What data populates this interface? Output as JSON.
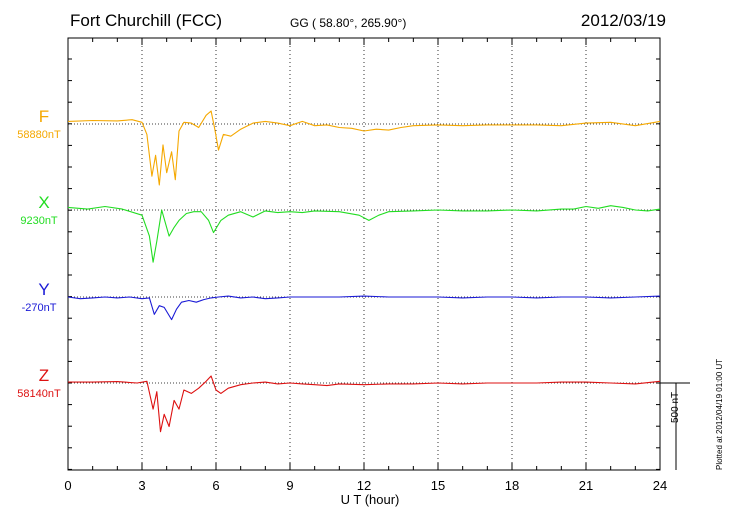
{
  "header": {
    "station": "Fort Churchill (FCC)",
    "coords": "GG ( 58.80°, 265.90°)",
    "date": "2012/03/19"
  },
  "footer": {
    "plotted": "Plotted at 2012/04/19 01:00 UT"
  },
  "chart_data": {
    "type": "line",
    "title": "Fort Churchill (FCC)",
    "xlabel": "U T (hour)",
    "ylabel": "",
    "xlim": [
      0,
      24
    ],
    "xticks": [
      0,
      3,
      6,
      9,
      12,
      15,
      18,
      21,
      24
    ],
    "scale_bar_label": "500 nT",
    "scale_bar_nT": 500,
    "nT_per_panel_unit": 1,
    "series": [
      {
        "name": "F",
        "baseline_label": "58880nT",
        "baseline_nT": 58880,
        "color": "#f5a800",
        "points": [
          [
            0,
            15
          ],
          [
            1,
            20
          ],
          [
            2,
            18
          ],
          [
            2.6,
            25
          ],
          [
            3.0,
            10
          ],
          [
            3.2,
            -60
          ],
          [
            3.4,
            -300
          ],
          [
            3.55,
            -180
          ],
          [
            3.7,
            -350
          ],
          [
            3.85,
            -120
          ],
          [
            4.0,
            -280
          ],
          [
            4.2,
            -160
          ],
          [
            4.35,
            -320
          ],
          [
            4.5,
            -40
          ],
          [
            4.7,
            10
          ],
          [
            5.0,
            5
          ],
          [
            5.3,
            -20
          ],
          [
            5.6,
            50
          ],
          [
            5.8,
            75
          ],
          [
            5.95,
            -30
          ],
          [
            6.1,
            -150
          ],
          [
            6.3,
            -60
          ],
          [
            6.6,
            -70
          ],
          [
            7.0,
            -30
          ],
          [
            7.5,
            5
          ],
          [
            8.0,
            15
          ],
          [
            8.5,
            5
          ],
          [
            9.0,
            -10
          ],
          [
            9.5,
            15
          ],
          [
            10.0,
            -10
          ],
          [
            10.5,
            -5
          ],
          [
            11.0,
            -20
          ],
          [
            11.5,
            -25
          ],
          [
            12.0,
            -40
          ],
          [
            12.5,
            -30
          ],
          [
            13.0,
            -35
          ],
          [
            13.5,
            -20
          ],
          [
            14.0,
            -10
          ],
          [
            15.0,
            -5
          ],
          [
            16.0,
            -10
          ],
          [
            17.0,
            -5
          ],
          [
            18.0,
            -5
          ],
          [
            19.0,
            -5
          ],
          [
            20.0,
            -10
          ],
          [
            21.0,
            5
          ],
          [
            22.0,
            10
          ],
          [
            23.0,
            -10
          ],
          [
            24.0,
            15
          ]
        ]
      },
      {
        "name": "X",
        "baseline_label": "9230nT",
        "baseline_nT": 9230,
        "color": "#22dd22",
        "points": [
          [
            0,
            15
          ],
          [
            0.8,
            5
          ],
          [
            1.5,
            20
          ],
          [
            2.2,
            5
          ],
          [
            3.0,
            -30
          ],
          [
            3.3,
            -150
          ],
          [
            3.45,
            -300
          ],
          [
            3.6,
            -180
          ],
          [
            3.8,
            0
          ],
          [
            4.1,
            -150
          ],
          [
            4.3,
            -100
          ],
          [
            4.5,
            -60
          ],
          [
            4.8,
            -20
          ],
          [
            5.1,
            -10
          ],
          [
            5.4,
            -10
          ],
          [
            5.7,
            -60
          ],
          [
            5.9,
            -130
          ],
          [
            6.2,
            -60
          ],
          [
            6.5,
            -30
          ],
          [
            7.0,
            -10
          ],
          [
            7.5,
            -40
          ],
          [
            8.0,
            -5
          ],
          [
            8.5,
            -15
          ],
          [
            9.0,
            -10
          ],
          [
            9.5,
            -15
          ],
          [
            10.0,
            -5
          ],
          [
            11.0,
            -10
          ],
          [
            11.8,
            -30
          ],
          [
            12.2,
            -60
          ],
          [
            12.6,
            -30
          ],
          [
            13.0,
            -10
          ],
          [
            14.0,
            -5
          ],
          [
            15.0,
            0
          ],
          [
            16.0,
            -5
          ],
          [
            17.0,
            -5
          ],
          [
            18.0,
            0
          ],
          [
            19.0,
            -5
          ],
          [
            20.0,
            5
          ],
          [
            20.5,
            5
          ],
          [
            21.0,
            20
          ],
          [
            21.5,
            10
          ],
          [
            22.0,
            25
          ],
          [
            22.5,
            15
          ],
          [
            23.0,
            0
          ],
          [
            23.5,
            -5
          ],
          [
            24.0,
            5
          ]
        ]
      },
      {
        "name": "Y",
        "baseline_label": "-270nT",
        "baseline_nT": -270,
        "color": "#1a1ad6",
        "points": [
          [
            0,
            0
          ],
          [
            0.5,
            -10
          ],
          [
            1.0,
            -5
          ],
          [
            1.5,
            0
          ],
          [
            2.0,
            -5
          ],
          [
            2.5,
            0
          ],
          [
            3.0,
            -10
          ],
          [
            3.3,
            -5
          ],
          [
            3.5,
            -100
          ],
          [
            3.7,
            -50
          ],
          [
            3.9,
            -60
          ],
          [
            4.2,
            -130
          ],
          [
            4.4,
            -70
          ],
          [
            4.6,
            -30
          ],
          [
            4.9,
            -20
          ],
          [
            5.2,
            -30
          ],
          [
            5.5,
            -15
          ],
          [
            5.8,
            -5
          ],
          [
            6.1,
            0
          ],
          [
            6.5,
            5
          ],
          [
            7.0,
            -5
          ],
          [
            7.5,
            0
          ],
          [
            8.0,
            -10
          ],
          [
            8.5,
            -5
          ],
          [
            9.0,
            0
          ],
          [
            9.5,
            0
          ],
          [
            10.0,
            0
          ],
          [
            10.5,
            0
          ],
          [
            11.0,
            0
          ],
          [
            12.0,
            5
          ],
          [
            13.0,
            0
          ],
          [
            14.0,
            0
          ],
          [
            15.0,
            0
          ],
          [
            16.0,
            -5
          ],
          [
            17.0,
            0
          ],
          [
            18.0,
            0
          ],
          [
            19.0,
            -5
          ],
          [
            20.0,
            0
          ],
          [
            21.0,
            0
          ],
          [
            22.0,
            -5
          ],
          [
            23.0,
            0
          ],
          [
            24.0,
            5
          ]
        ]
      },
      {
        "name": "Z",
        "baseline_label": "58140nT",
        "baseline_nT": 58140,
        "color": "#dd1111",
        "points": [
          [
            0,
            5
          ],
          [
            1,
            5
          ],
          [
            2,
            8
          ],
          [
            2.8,
            0
          ],
          [
            3.2,
            10
          ],
          [
            3.45,
            -150
          ],
          [
            3.6,
            -50
          ],
          [
            3.75,
            -280
          ],
          [
            3.9,
            -180
          ],
          [
            4.1,
            -250
          ],
          [
            4.3,
            -100
          ],
          [
            4.5,
            -150
          ],
          [
            4.7,
            -40
          ],
          [
            5.0,
            -60
          ],
          [
            5.3,
            -30
          ],
          [
            5.6,
            10
          ],
          [
            5.8,
            40
          ],
          [
            6.0,
            -40
          ],
          [
            6.2,
            -60
          ],
          [
            6.5,
            -30
          ],
          [
            7.0,
            -10
          ],
          [
            7.5,
            0
          ],
          [
            8.0,
            5
          ],
          [
            8.5,
            -5
          ],
          [
            9.0,
            0
          ],
          [
            9.5,
            -5
          ],
          [
            10.0,
            -10
          ],
          [
            10.5,
            -15
          ],
          [
            11.0,
            -5
          ],
          [
            12.0,
            -10
          ],
          [
            13.0,
            -5
          ],
          [
            14.0,
            -5
          ],
          [
            15.0,
            0
          ],
          [
            16.0,
            -5
          ],
          [
            17.0,
            0
          ],
          [
            18.0,
            0
          ],
          [
            19.0,
            0
          ],
          [
            20.0,
            5
          ],
          [
            21.0,
            5
          ],
          [
            22.0,
            0
          ],
          [
            23.0,
            -5
          ],
          [
            24.0,
            10
          ]
        ]
      }
    ]
  }
}
